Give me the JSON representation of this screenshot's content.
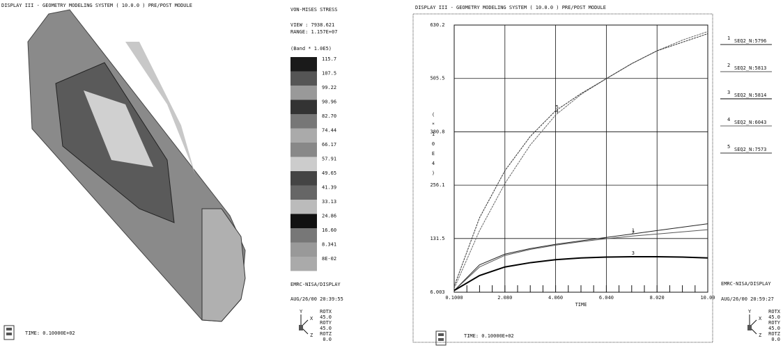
{
  "left": {
    "header": "DISPLAY III - GEOMETRY MODELING SYSTEM ( 10.0.0 )  PRE/POST MODULE",
    "result": "VON-MISES STRESS",
    "view": "VIEW : 7938.621",
    "range": "RANGE: 1.157E+07",
    "band_title": "(Band * 1.0E5)",
    "band_values": [
      "115.7",
      "107.5",
      "99.22",
      "90.96",
      "82.70",
      "74.44",
      "66.17",
      "57.91",
      "49.65",
      "41.39",
      "33.13",
      "24.86",
      "16.60",
      "8.341",
      "8E-02"
    ],
    "program": "EMRC-NISA/DISPLAY",
    "date": "AUG/26/00 20:39:55",
    "axes": [
      "Y",
      "X",
      "Z"
    ],
    "rotation": [
      "ROTX",
      "45.0",
      "ROTY",
      "45.0",
      "ROTZ",
      "0.0"
    ],
    "time": "TIME:  0.10000E+02"
  },
  "right": {
    "header": "DISPLAY III - GEOMETRY MODELING SYSTEM ( 10.0.0 )  PRE/POST MODULE",
    "program": "EMRC-NISA/DISPLAY",
    "date": "AUG/26/00 20:59:27",
    "axes": [
      "Y",
      "X",
      "Z"
    ],
    "rotation": [
      "ROTX",
      "45.0",
      "ROTY",
      "45.0",
      "ROTZ",
      "0.0"
    ],
    "time": "TIME:  0.10000E+02"
  },
  "chart_data": {
    "type": "line",
    "x_label": "TIME",
    "y_label": "(*10E4)",
    "x": [
      0.1,
      1.09,
      2.08,
      3.07,
      4.06,
      5.05,
      6.04,
      7.03,
      8.02,
      9.01,
      10.0
    ],
    "xlim": [
      0.1,
      10.0
    ],
    "xticks": [
      {
        "value": 0.1,
        "label": "0.1000"
      },
      {
        "value": 2.08,
        "label": "2.080"
      },
      {
        "value": 4.06,
        "label": "4.060"
      },
      {
        "value": 6.04,
        "label": "6.040"
      },
      {
        "value": 8.02,
        "label": "8.020"
      },
      {
        "value": 10.0,
        "label": "10.00"
      }
    ],
    "ylim": [
      6.003,
      630.2
    ],
    "yticks": [
      6.003,
      131.5,
      256.1,
      380.8,
      505.5,
      630.2
    ],
    "grid": true,
    "legend_keys": [
      "1",
      "2",
      "3",
      "4",
      "5"
    ],
    "series": [
      {
        "name": "SEQ2_N:5796",
        "color": "#222222",
        "values": [
          10,
          70,
          95,
          108,
          118,
          126,
          134,
          142,
          150,
          158,
          166
        ]
      },
      {
        "name": "SEQ2_N:5813",
        "color": "#555555",
        "values": [
          10,
          65,
          92,
          106,
          116,
          124,
          131,
          137,
          142,
          147,
          152
        ]
      },
      {
        "name": "SEQ2_N:5814",
        "color": "#000000",
        "values": [
          10,
          45,
          65,
          75,
          82,
          86,
          88,
          89,
          89,
          88,
          86
        ]
      },
      {
        "name": "SEQ2_N:6043",
        "color": "#666666",
        "values": [
          15,
          150,
          260,
          350,
          420,
          468,
          505,
          540,
          570,
          595,
          615
        ]
      },
      {
        "name": "SEQ2_N:7573",
        "color": "#333333",
        "values": [
          20,
          180,
          290,
          370,
          430,
          470,
          505,
          540,
          570,
          590,
          610
        ]
      }
    ]
  }
}
